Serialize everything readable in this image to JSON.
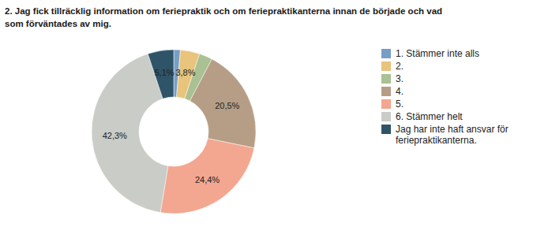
{
  "chart_data": {
    "type": "pie",
    "title": "2. Jag fick tillräcklig information om feriepraktik och om feriepraktikanterna innan de började och vad som förväntades av mig.",
    "categories": [
      "1. Stämmer inte alls",
      "2.",
      "3.",
      "4.",
      "5.",
      "6. Stämmer helt",
      "Jag har inte haft ansvar för feriepraktikanterna."
    ],
    "values": [
      1.3,
      3.8,
      2.6,
      20.5,
      24.4,
      42.3,
      5.1
    ],
    "value_labels": [
      null,
      "3,8%",
      null,
      "20,5%",
      "24,4%",
      "42,3%",
      "5,1%"
    ],
    "colors": [
      "#779fc6",
      "#e8c47c",
      "#a9c193",
      "#b69e86",
      "#f3a690",
      "#c9ccc7",
      "#2f5468"
    ],
    "data_labels": true,
    "legend": "right"
  }
}
